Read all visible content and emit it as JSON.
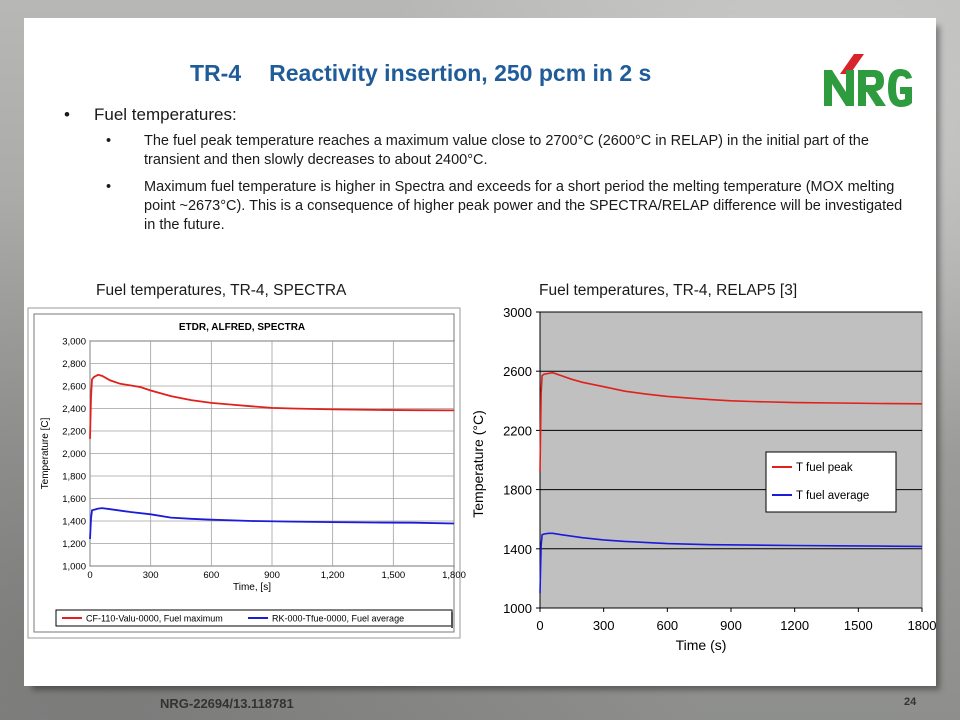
{
  "slide": {
    "title_prefix": "TR-4",
    "title_main": "Reactivity insertion, 250 pcm in 2 s",
    "logo_text": "NRG",
    "bullet_heading": "Fuel temperatures:",
    "sub_bullets": [
      "The fuel peak temperature reaches a maximum value close to 2700°C (2600°C in RELAP) in the initial part of the transient and then slowly decreases to about 2400°C.",
      "Maximum fuel temperature is higher in Spectra and exceeds for a short period the melting temperature (MOX melting point ~2673°C). This is a consequence of higher peak power and the SPECTRA/RELAP difference will be investigated in the future."
    ],
    "caption_left": "Fuel temperatures, TR-4, SPECTRA",
    "caption_right": "Fuel temperatures, TR-4, RELAP5 [3]",
    "footer_id": "NRG-22694/13.118781",
    "page_number": "24"
  },
  "colors": {
    "title": "#1f5c99",
    "logo_green": "#2e9b3e",
    "logo_red": "#d8232a",
    "series_red": "#e0201b",
    "series_blue": "#1b1bd8",
    "plot_bg_right": "#c0c0c0"
  },
  "chart_data": [
    {
      "type": "line",
      "title": "ETDR, ALFRED, SPECTRA",
      "xlabel": "Time, [s]",
      "ylabel": "Temperature [C]",
      "xlim": [
        0,
        1800
      ],
      "ylim": [
        1000,
        3000
      ],
      "xticks": [
        0,
        300,
        600,
        900,
        1200,
        1500,
        1800
      ],
      "xtick_labels": [
        "0",
        "300",
        "600",
        "900",
        "1,200",
        "1,500",
        "1,800"
      ],
      "yticks": [
        1000,
        1200,
        1400,
        1600,
        1800,
        2000,
        2200,
        2400,
        2600,
        2800,
        3000
      ],
      "ytick_labels": [
        "1,000",
        "1,200",
        "1,400",
        "1,600",
        "1,800",
        "2,000",
        "2,200",
        "2,400",
        "2,600",
        "2,800",
        "3,000"
      ],
      "grid": true,
      "legend_position": "bottom",
      "series": [
        {
          "name": "CF-110-Valu-0000, Fuel maximum",
          "color": "#e0201b",
          "x": [
            0,
            5,
            10,
            20,
            40,
            60,
            100,
            150,
            200,
            250,
            300,
            400,
            500,
            600,
            700,
            800,
            900,
            1000,
            1200,
            1400,
            1600,
            1800
          ],
          "y": [
            2130,
            2500,
            2660,
            2680,
            2700,
            2690,
            2650,
            2620,
            2605,
            2590,
            2560,
            2510,
            2475,
            2450,
            2435,
            2420,
            2405,
            2400,
            2392,
            2388,
            2385,
            2383
          ]
        },
        {
          "name": "RK-000-Tfue-0000, Fuel average",
          "color": "#1b1bd8",
          "x": [
            0,
            5,
            10,
            20,
            40,
            60,
            100,
            200,
            300,
            400,
            500,
            600,
            800,
            1000,
            1200,
            1400,
            1600,
            1800
          ],
          "y": [
            1240,
            1420,
            1495,
            1500,
            1510,
            1515,
            1505,
            1480,
            1460,
            1430,
            1420,
            1412,
            1400,
            1395,
            1390,
            1387,
            1385,
            1378
          ]
        }
      ]
    },
    {
      "type": "line",
      "xlabel": "Time (s)",
      "ylabel": "Temperature (°C)",
      "xlim": [
        0,
        1800
      ],
      "ylim": [
        1000,
        3000
      ],
      "xticks": [
        0,
        300,
        600,
        900,
        1200,
        1500,
        1800
      ],
      "yticks": [
        1000,
        1400,
        1800,
        2200,
        2600,
        3000
      ],
      "grid": true,
      "legend_position": "middle-right",
      "series": [
        {
          "name": "T fuel peak",
          "color": "#e0201b",
          "x": [
            0,
            5,
            10,
            20,
            40,
            60,
            100,
            150,
            200,
            300,
            400,
            500,
            600,
            700,
            800,
            900,
            1000,
            1200,
            1400,
            1600,
            1800
          ],
          "y": [
            1920,
            2450,
            2570,
            2580,
            2585,
            2590,
            2570,
            2545,
            2525,
            2495,
            2465,
            2445,
            2430,
            2418,
            2408,
            2400,
            2395,
            2388,
            2385,
            2382,
            2380
          ]
        },
        {
          "name": "T fuel average",
          "color": "#1b1bd8",
          "x": [
            0,
            5,
            10,
            20,
            40,
            60,
            100,
            200,
            300,
            400,
            600,
            800,
            1000,
            1200,
            1400,
            1600,
            1800
          ],
          "y": [
            1100,
            1420,
            1495,
            1500,
            1505,
            1505,
            1495,
            1475,
            1460,
            1450,
            1435,
            1428,
            1425,
            1422,
            1420,
            1418,
            1416
          ]
        }
      ]
    }
  ]
}
